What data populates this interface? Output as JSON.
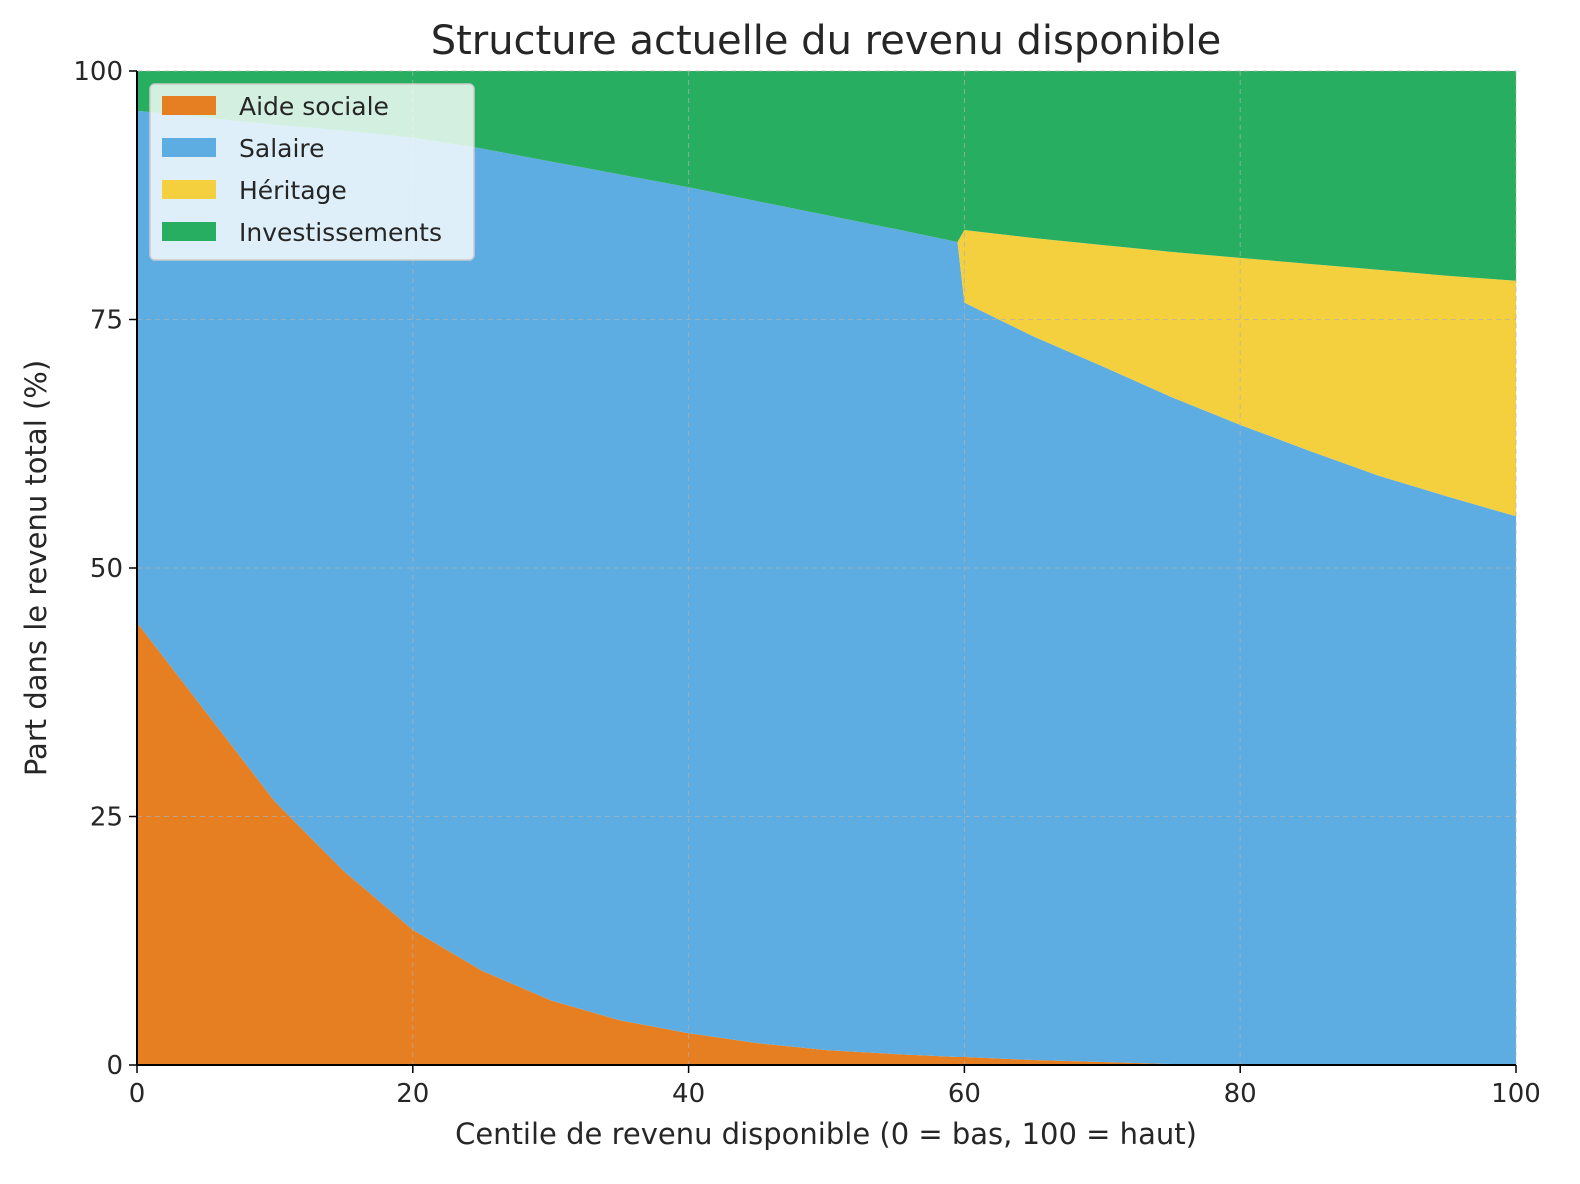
{
  "chart_data": {
    "type": "area",
    "stacked": true,
    "title": "Structure actuelle du revenu disponible",
    "xlabel": "Centile de revenu disponible (0 = bas, 100 = haut)",
    "ylabel": "Part dans le revenu total (%)",
    "xlim": [
      0,
      100
    ],
    "ylim": [
      0,
      100
    ],
    "xticks": [
      0,
      20,
      40,
      60,
      80,
      100
    ],
    "yticks": [
      0,
      25,
      50,
      75,
      100
    ],
    "grid": true,
    "legend_position": "top-left",
    "x": [
      0,
      5,
      10,
      15,
      20,
      25,
      30,
      35,
      40,
      45,
      50,
      55,
      59.5,
      60,
      65,
      70,
      75,
      80,
      85,
      90,
      95,
      100
    ],
    "series": [
      {
        "name": "Aide sociale",
        "color": "#E67E22",
        "values": [
          44.5,
          35.5,
          26.5,
          19.5,
          13.6,
          9.5,
          6.5,
          4.5,
          3.2,
          2.2,
          1.5,
          1.1,
          0.8,
          0.8,
          0.5,
          0.3,
          0.1,
          0,
          0,
          0,
          0,
          0
        ]
      },
      {
        "name": "Salaire",
        "color": "#5DADE2",
        "values": [
          51.5,
          59.8,
          68.1,
          74.5,
          79.7,
          82.7,
          84.4,
          85.1,
          85.1,
          84.7,
          84.0,
          83.0,
          82.0,
          75.9,
          72.8,
          70.0,
          67.1,
          64.4,
          61.8,
          59.3,
          57.2,
          55.2
        ]
      },
      {
        "name": "Héritage",
        "color": "#F4D03F",
        "values": [
          0,
          0,
          0,
          0,
          0,
          0,
          0,
          0,
          0,
          0,
          0,
          0,
          0,
          7.3,
          9.9,
          12.2,
          14.6,
          16.8,
          18.8,
          20.7,
          22.2,
          23.7
        ]
      },
      {
        "name": "Investissements",
        "color": "#27AE60",
        "values": [
          4.0,
          4.7,
          5.4,
          6.0,
          6.7,
          7.8,
          9.1,
          10.4,
          11.7,
          13.1,
          14.5,
          15.9,
          17.2,
          16.0,
          16.8,
          17.5,
          18.2,
          18.8,
          19.4,
          20.0,
          20.6,
          21.1
        ]
      }
    ]
  }
}
